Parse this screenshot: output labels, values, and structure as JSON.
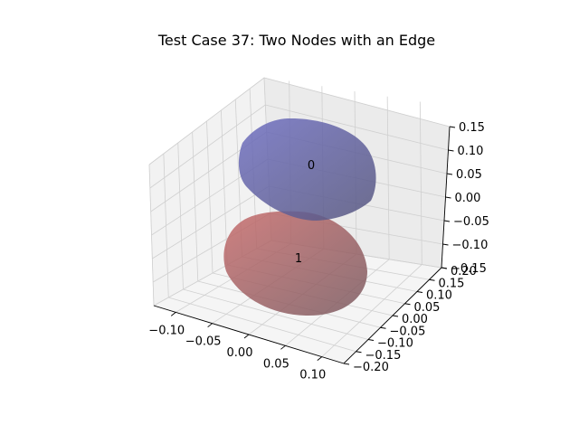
{
  "chart_data": {
    "type": "scatter",
    "title": "Test Case 37: Two Nodes with an Edge",
    "xlabel": "",
    "ylabel": "",
    "zlabel": "",
    "xlim": [
      -0.13,
      0.13
    ],
    "ylim": [
      -0.2,
      0.2
    ],
    "zlim": [
      -0.15,
      0.15
    ],
    "x_ticks": [
      "−0.10",
      "−0.05",
      "0.00",
      "0.05",
      "0.10"
    ],
    "y_ticks": [
      "−0.20",
      "−0.15",
      "−0.10",
      "−0.05",
      "0.00",
      "0.05",
      "0.10",
      "0.15",
      "0.20"
    ],
    "z_ticks": [
      "−0.15",
      "−0.10",
      "−0.05",
      "0.00",
      "0.05",
      "0.10",
      "0.15"
    ],
    "grid": true,
    "nodes": [
      {
        "label": "0",
        "color": "#5a5aa8",
        "opacity": 0.8
      },
      {
        "label": "1",
        "color": "#b06464",
        "opacity": 0.8
      }
    ]
  }
}
